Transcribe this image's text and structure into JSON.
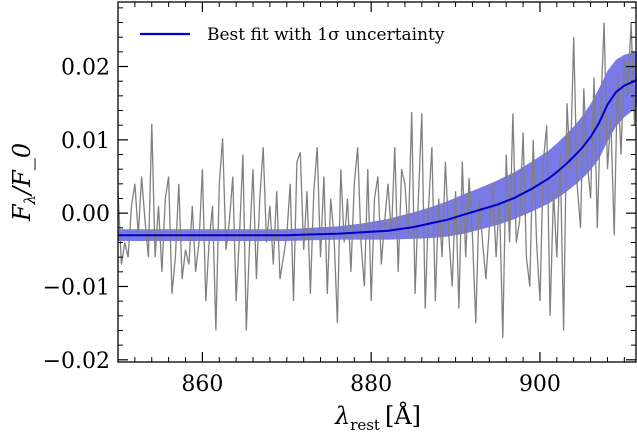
{
  "chart_data": {
    "type": "line",
    "xlabel": "λ_rest [Å]",
    "ylabel": "F_λ/F_0",
    "xlim": [
      850,
      911.5
    ],
    "ylim": [
      -0.0203,
      0.0288
    ],
    "xticks": [
      860,
      880,
      900
    ],
    "xtick_labels": [
      "860",
      "880",
      "900"
    ],
    "yticks": [
      -0.02,
      -0.01,
      0.0,
      0.01,
      0.02
    ],
    "ytick_labels": [
      "−0.02",
      "−0.01",
      "0.00",
      "0.01",
      "0.02"
    ],
    "legend": {
      "position": "top-left",
      "entries": [
        "Best fit with 1σ uncertainty"
      ]
    },
    "colors": {
      "data": "#808080",
      "fit": "#0000cd",
      "band": "#6a6ae6"
    },
    "series": [
      {
        "name": "Best fit with 1σ uncertainty",
        "role": "fit",
        "x": [
          850,
          855,
          860,
          865,
          870,
          873,
          876,
          879,
          882,
          885,
          887,
          889,
          891,
          893,
          895,
          897,
          899,
          901,
          902,
          903,
          904,
          905,
          906,
          907,
          908,
          909,
          910,
          911,
          911.5
        ],
        "y": [
          -0.003,
          -0.003,
          -0.003,
          -0.003,
          -0.003,
          -0.0029,
          -0.0028,
          -0.0026,
          -0.0024,
          -0.0019,
          -0.0014,
          -0.0009,
          -0.0002,
          0.0005,
          0.0012,
          0.0021,
          0.0033,
          0.0047,
          0.0056,
          0.0066,
          0.0077,
          0.0089,
          0.0104,
          0.0123,
          0.0148,
          0.0165,
          0.0174,
          0.0179,
          0.0182
        ],
        "lower": [
          -0.0038,
          -0.0038,
          -0.0038,
          -0.0038,
          -0.0038,
          -0.0037,
          -0.0036,
          -0.0036,
          -0.0036,
          -0.0035,
          -0.0034,
          -0.0032,
          -0.0028,
          -0.0022,
          -0.0016,
          -0.0008,
          0.0002,
          0.0013,
          0.002,
          0.0028,
          0.0037,
          0.0047,
          0.0059,
          0.0074,
          0.0098,
          0.0118,
          0.0131,
          0.014,
          0.0145
        ],
        "upper": [
          -0.0022,
          -0.0022,
          -0.0022,
          -0.0022,
          -0.0022,
          -0.002,
          -0.0018,
          -0.0014,
          -0.0008,
          0.0001,
          0.0008,
          0.0016,
          0.0026,
          0.0035,
          0.0045,
          0.0056,
          0.007,
          0.0085,
          0.0095,
          0.0106,
          0.0118,
          0.0132,
          0.0149,
          0.017,
          0.0194,
          0.0209,
          0.0216,
          0.0219,
          0.022
        ]
      },
      {
        "role": "data",
        "x": [
          850.0,
          850.4,
          850.8,
          851.2,
          851.6,
          852.0,
          852.4,
          852.8,
          853.2,
          853.6,
          854.0,
          854.4,
          854.8,
          855.2,
          855.6,
          856.0,
          856.4,
          856.8,
          857.2,
          857.6,
          858.0,
          858.4,
          858.8,
          859.2,
          859.6,
          860.0,
          860.4,
          860.8,
          861.2,
          861.6,
          862.0,
          862.4,
          862.8,
          863.2,
          863.6,
          864.0,
          864.4,
          864.8,
          865.2,
          865.6,
          866.0,
          866.4,
          866.8,
          867.2,
          867.6,
          868.0,
          868.4,
          868.8,
          869.2,
          869.6,
          870.0,
          870.4,
          870.8,
          871.2,
          871.6,
          872.0,
          872.4,
          872.8,
          873.2,
          873.6,
          874.0,
          874.4,
          874.8,
          875.2,
          875.6,
          876.0,
          876.4,
          876.8,
          877.2,
          877.6,
          878.0,
          878.4,
          878.8,
          879.2,
          879.6,
          880.0,
          880.4,
          880.8,
          881.2,
          881.6,
          882.0,
          882.4,
          882.8,
          883.2,
          883.6,
          884.0,
          884.4,
          884.8,
          885.2,
          885.6,
          886.0,
          886.4,
          886.8,
          887.2,
          887.6,
          888.0,
          888.4,
          888.8,
          889.2,
          889.6,
          890.0,
          890.4,
          890.8,
          891.2,
          891.6,
          892.0,
          892.4,
          892.8,
          893.2,
          893.6,
          894.0,
          894.4,
          894.8,
          895.2,
          895.6,
          896.0,
          896.4,
          896.8,
          897.2,
          897.6,
          898.0,
          898.4,
          898.8,
          899.2,
          899.6,
          900.0,
          900.4,
          900.8,
          901.2,
          901.6,
          902.0,
          902.4,
          902.8,
          903.2,
          903.6,
          904.0,
          904.4,
          904.8,
          905.2,
          905.6,
          906.0,
          906.4,
          906.8,
          907.2,
          907.6,
          908.0,
          908.4,
          908.8,
          909.2,
          909.6,
          910.0,
          910.4,
          910.8,
          911.2,
          911.5
        ],
        "y": [
          0.003,
          -0.007,
          -0.004,
          -0.006,
          0.001,
          0.004,
          -0.003,
          0.005,
          -0.001,
          -0.006,
          0.0122,
          -0.006,
          0.001,
          -0.008,
          0.002,
          0.005,
          -0.011,
          -0.006,
          0.004,
          -0.009,
          -0.005,
          -0.007,
          0.001,
          -0.008,
          -0.004,
          0.006,
          -0.012,
          -0.004,
          0.001,
          -0.016,
          0.004,
          0.0102,
          -0.005,
          -0.001,
          0.005,
          -0.012,
          -0.003,
          0.008,
          -0.016,
          -0.004,
          0.006,
          -0.009,
          0.002,
          0.009,
          -0.004,
          0.001,
          -0.007,
          0.003,
          -0.009,
          -0.006,
          -0.003,
          0.004,
          -0.012,
          0.007,
          0.0083,
          -0.005,
          0.003,
          -0.011,
          0.003,
          0.009,
          -0.006,
          0.005,
          -0.011,
          0.002,
          -0.003,
          -0.015,
          0.006,
          -0.004,
          0.002,
          -0.008,
          0.004,
          0.009,
          -0.004,
          -0.01,
          0.006,
          -0.012,
          0.002,
          0.005,
          -0.007,
          -0.001,
          0.004,
          -0.003,
          0.009,
          -0.008,
          0.006,
          0.004,
          -0.003,
          0.0138,
          -0.011,
          0.002,
          0.0136,
          -0.013,
          0.001,
          0.009,
          -0.012,
          0.002,
          -0.006,
          0.007,
          -0.003,
          -0.01,
          0.003,
          -0.013,
          0.007,
          -0.006,
          0.0048,
          -0.003,
          -0.015,
          0.002,
          -0.004,
          -0.009,
          -0.002,
          0.004,
          -0.006,
          0.002,
          -0.017,
          0.008,
          -0.004,
          0.0136,
          -0.004,
          -0.001,
          0.011,
          -0.006,
          -0.01,
          0.01,
          -0.004,
          -0.012,
          0.007,
          0.012,
          -0.014,
          0.003,
          -0.006,
          0.008,
          -0.016,
          0.015,
          0.006,
          0.024,
          0.004,
          -0.002,
          0.017,
          0.007,
          0.002,
          0.0185,
          -0.002,
          0.014,
          0.026,
          0.006,
          0.013,
          -0.003,
          0.019,
          0.008,
          0.021,
          0.016,
          0.026,
          0.012,
          0.021
        ]
      }
    ]
  }
}
